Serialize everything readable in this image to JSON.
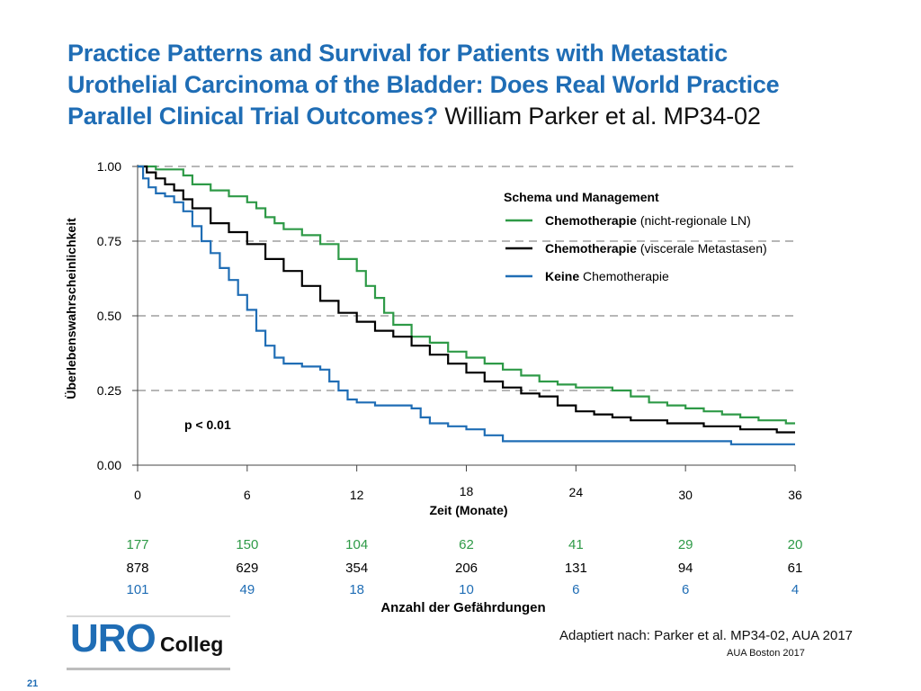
{
  "slide": {
    "title_bold": "Practice Patterns and Survival for Patients with Metastatic Urothelial Carcinoma of the Bladder: Does Real World Practice Parallel Clinical Trial Outcomes?",
    "title_line1": "Practice Patterns and Survival for Patients with Metastatic",
    "title_line2": "Urothelial Carcinoma of the Bladder: Does Real World Practice",
    "title_line3": "Parallel Clinical Trial Outcomes?",
    "title_citation": "William Parker et al. MP34-02",
    "source": "Adaptiert nach: Parker et al. MP34-02, AUA 2017",
    "event": "AUA Boston 2017",
    "page_number": "21",
    "logo": {
      "part1": "URO",
      "part2": "Colleg"
    },
    "colors": {
      "title": "#1f6db5",
      "green": "#2e9a47",
      "black": "#000000",
      "blue": "#1f6db5",
      "grid": "#8c8c8c"
    }
  },
  "chart_data": {
    "type": "line",
    "chart_subtype": "kaplan-meier survival",
    "xlabel": "Zeit (Monate)",
    "ylabel": "Überlebenswahrscheinlichkeit",
    "xlim": [
      0,
      36
    ],
    "ylim": [
      0,
      1
    ],
    "x_ticks": [
      0,
      6,
      12,
      18,
      24,
      30,
      36
    ],
    "y_ticks": [
      0.0,
      0.25,
      0.5,
      0.75,
      1.0
    ],
    "y_tick_labels": [
      "0.00",
      "0.25",
      "0.50",
      "0.75",
      "1.00"
    ],
    "grid": "horizontal dashed",
    "legend": {
      "title": "Schema und Management",
      "placement": "top-right",
      "entries": [
        {
          "bold": "Chemotherapie",
          "rest": "(nicht-regionale LN)",
          "color": "#2e9a47"
        },
        {
          "bold": "Chemotherapie",
          "rest": "(viscerale Metastasen)",
          "color": "#000000"
        },
        {
          "bold": "Keine",
          "rest": "Chemotherapie",
          "color": "#1f6db5"
        }
      ]
    },
    "annotation": "p < 0.01",
    "series": [
      {
        "color": "#2e9a47",
        "points": [
          [
            0,
            1.0
          ],
          [
            0.5,
            1.0
          ],
          [
            1,
            0.99
          ],
          [
            2,
            0.99
          ],
          [
            2.5,
            0.97
          ],
          [
            3,
            0.94
          ],
          [
            4,
            0.92
          ],
          [
            5,
            0.9
          ],
          [
            6,
            0.88
          ],
          [
            6.5,
            0.86
          ],
          [
            7,
            0.83
          ],
          [
            7.5,
            0.81
          ],
          [
            8,
            0.79
          ],
          [
            9,
            0.77
          ],
          [
            10,
            0.74
          ],
          [
            11,
            0.69
          ],
          [
            12,
            0.65
          ],
          [
            12.5,
            0.6
          ],
          [
            13,
            0.56
          ],
          [
            13.5,
            0.51
          ],
          [
            14,
            0.47
          ],
          [
            15,
            0.43
          ],
          [
            16,
            0.41
          ],
          [
            17,
            0.38
          ],
          [
            18,
            0.36
          ],
          [
            19,
            0.34
          ],
          [
            20,
            0.32
          ],
          [
            21,
            0.3
          ],
          [
            22,
            0.28
          ],
          [
            23,
            0.27
          ],
          [
            24,
            0.26
          ],
          [
            25,
            0.26
          ],
          [
            26,
            0.25
          ],
          [
            27,
            0.23
          ],
          [
            28,
            0.21
          ],
          [
            29,
            0.2
          ],
          [
            30,
            0.19
          ],
          [
            31,
            0.18
          ],
          [
            32,
            0.17
          ],
          [
            33,
            0.16
          ],
          [
            34,
            0.15
          ],
          [
            35,
            0.15
          ],
          [
            35.5,
            0.14
          ],
          [
            36,
            0.14
          ]
        ]
      },
      {
        "color": "#000000",
        "points": [
          [
            0,
            1.0
          ],
          [
            0.5,
            0.98
          ],
          [
            1,
            0.96
          ],
          [
            1.5,
            0.94
          ],
          [
            2,
            0.92
          ],
          [
            2.5,
            0.89
          ],
          [
            3,
            0.86
          ],
          [
            4,
            0.81
          ],
          [
            5,
            0.78
          ],
          [
            6,
            0.74
          ],
          [
            7,
            0.69
          ],
          [
            8,
            0.65
          ],
          [
            9,
            0.6
          ],
          [
            10,
            0.55
          ],
          [
            11,
            0.51
          ],
          [
            12,
            0.48
          ],
          [
            13,
            0.45
          ],
          [
            14,
            0.43
          ],
          [
            15,
            0.4
          ],
          [
            16,
            0.37
          ],
          [
            17,
            0.34
          ],
          [
            18,
            0.31
          ],
          [
            19,
            0.28
          ],
          [
            20,
            0.26
          ],
          [
            21,
            0.24
          ],
          [
            22,
            0.23
          ],
          [
            23,
            0.2
          ],
          [
            24,
            0.18
          ],
          [
            25,
            0.17
          ],
          [
            26,
            0.16
          ],
          [
            27,
            0.15
          ],
          [
            28,
            0.15
          ],
          [
            29,
            0.14
          ],
          [
            30,
            0.14
          ],
          [
            31,
            0.13
          ],
          [
            32,
            0.13
          ],
          [
            33,
            0.12
          ],
          [
            34,
            0.12
          ],
          [
            35,
            0.11
          ],
          [
            36,
            0.11
          ]
        ]
      },
      {
        "color": "#1f6db5",
        "points": [
          [
            0,
            1.0
          ],
          [
            0.3,
            0.96
          ],
          [
            0.6,
            0.93
          ],
          [
            1,
            0.91
          ],
          [
            1.5,
            0.9
          ],
          [
            2,
            0.88
          ],
          [
            2.5,
            0.85
          ],
          [
            3,
            0.8
          ],
          [
            3.5,
            0.75
          ],
          [
            4,
            0.71
          ],
          [
            4.5,
            0.66
          ],
          [
            5,
            0.62
          ],
          [
            5.5,
            0.57
          ],
          [
            6,
            0.52
          ],
          [
            6.5,
            0.45
          ],
          [
            7,
            0.4
          ],
          [
            7.5,
            0.36
          ],
          [
            8,
            0.34
          ],
          [
            9,
            0.33
          ],
          [
            10,
            0.32
          ],
          [
            10.5,
            0.28
          ],
          [
            11,
            0.25
          ],
          [
            11.5,
            0.22
          ],
          [
            12,
            0.21
          ],
          [
            13,
            0.2
          ],
          [
            14,
            0.2
          ],
          [
            15,
            0.19
          ],
          [
            15.5,
            0.16
          ],
          [
            16,
            0.14
          ],
          [
            17,
            0.13
          ],
          [
            18,
            0.12
          ],
          [
            19,
            0.1
          ],
          [
            20,
            0.08
          ],
          [
            21,
            0.08
          ],
          [
            24,
            0.08
          ],
          [
            30,
            0.08
          ],
          [
            32,
            0.08
          ],
          [
            32.5,
            0.07
          ],
          [
            34,
            0.07
          ],
          [
            36,
            0.07
          ]
        ]
      }
    ],
    "risk_table": {
      "title": "Anzahl der Gefährdungen",
      "timepoints": [
        0,
        6,
        12,
        18,
        24,
        30,
        36
      ],
      "rows": [
        {
          "color": "#2e9a47",
          "values": [
            "177",
            "150",
            "104",
            "62",
            "41",
            "29",
            "20"
          ]
        },
        {
          "color": "#000000",
          "values": [
            "878",
            "629",
            "354",
            "206",
            "131",
            "94",
            "61"
          ]
        },
        {
          "color": "#1f6db5",
          "values": [
            "101",
            "49",
            "18",
            "10",
            "6",
            "6",
            "4"
          ]
        }
      ]
    }
  }
}
